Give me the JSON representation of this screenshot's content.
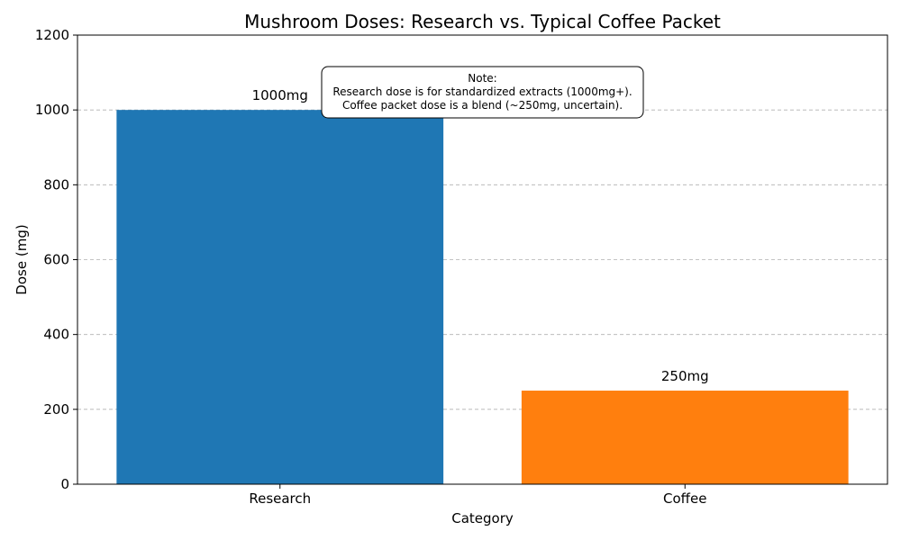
{
  "chart_data": {
    "type": "bar",
    "title": "Mushroom Doses: Research vs. Typical Coffee Packet",
    "xlabel": "Category",
    "ylabel": "Dose (mg)",
    "categories": [
      "Research",
      "Coffee"
    ],
    "values": [
      1000,
      250
    ],
    "data_labels": [
      "1000mg",
      "250mg"
    ],
    "bar_colors": [
      "#1f77b4",
      "#ff7f0e"
    ],
    "ylim": [
      0,
      1200
    ],
    "yticks": [
      0,
      200,
      400,
      600,
      800,
      1000,
      1200
    ],
    "grid": "y-dashed",
    "annotation": {
      "lines": [
        "Note:",
        "Research dose is for standardized extracts (1000mg+).",
        "Coffee packet dose is a blend (~250mg, uncertain)."
      ]
    }
  }
}
